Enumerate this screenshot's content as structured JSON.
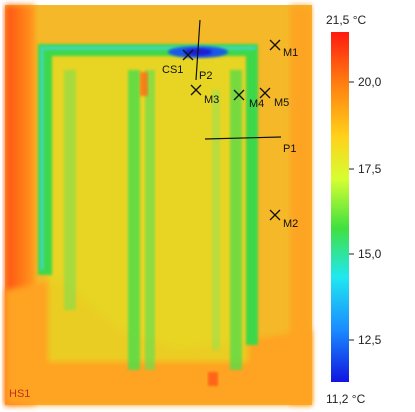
{
  "image": {
    "hotspot_label": "HS1",
    "markers": [
      {
        "label": "CS1",
        "kind": "cold-spot"
      },
      {
        "label": "M1",
        "kind": "measure-point"
      },
      {
        "label": "M2",
        "kind": "measure-point"
      },
      {
        "label": "M3",
        "kind": "measure-point"
      },
      {
        "label": "M4",
        "kind": "measure-point"
      },
      {
        "label": "M5",
        "kind": "measure-point"
      }
    ],
    "profiles": [
      {
        "label": "P1",
        "orientation": "horizontal"
      },
      {
        "label": "P2",
        "orientation": "vertical"
      }
    ]
  },
  "scale": {
    "max_label": "21,5 °C",
    "min_label": "11,2 °C",
    "ticks": [
      "20,0",
      "17,5",
      "15,0",
      "12,5"
    ],
    "palette": [
      "#ff1a10",
      "#ff7a10",
      "#ffd21a",
      "#d6ff30",
      "#40e040",
      "#20e8f0",
      "#1a8cff",
      "#1014e0"
    ]
  }
}
